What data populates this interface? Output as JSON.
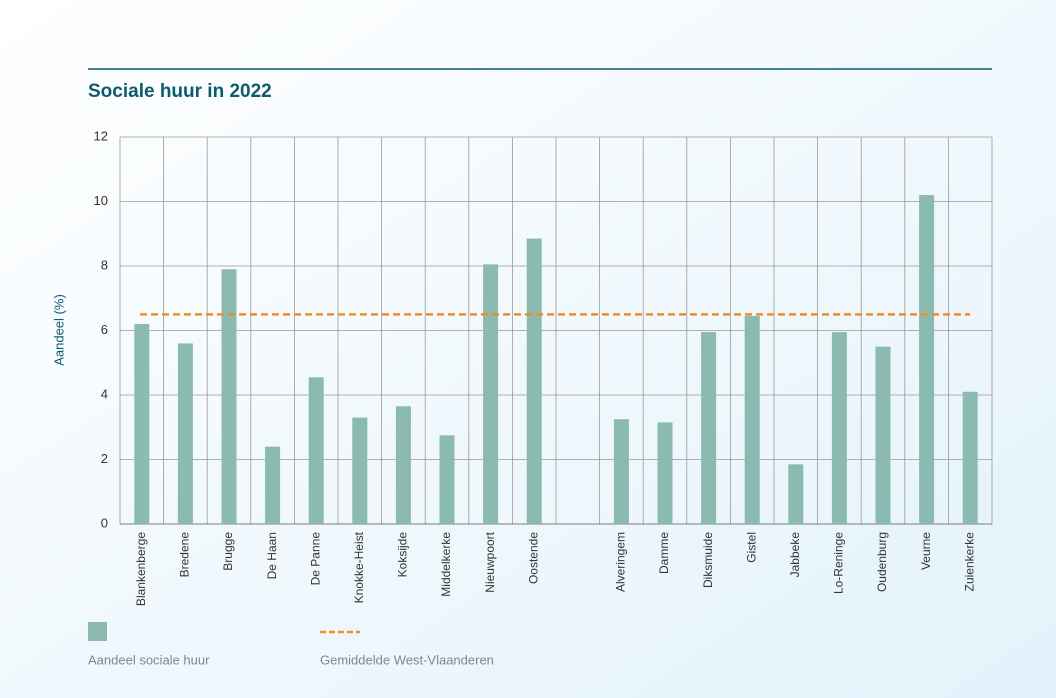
{
  "chart_data": {
    "type": "bar",
    "title": "Sociale huur in 2022",
    "y_label": "Aandeel (%)",
    "categories": [
      "Blankenberge",
      "Bredene",
      "Brugge",
      "De Haan",
      "De Panne",
      "Knokke-Heist",
      "Koksijde",
      "Middelkerke",
      "Nieuwpoort",
      "Oostende",
      null,
      "Alveringem",
      "Damme",
      "Diksmuide",
      "Gistel",
      "Jabbeke",
      "Lo-Reninge",
      "Oudenburg",
      "Veurne",
      "Zuienkerke"
    ],
    "series": [
      {
        "name": "Aandeel sociale huur",
        "color": "#8bbab0",
        "values": [
          6.2,
          5.6,
          7.9,
          2.4,
          4.55,
          3.3,
          3.65,
          2.75,
          8.05,
          8.85,
          null,
          3.25,
          3.15,
          5.95,
          6.45,
          1.85,
          5.95,
          5.5,
          10.2,
          4.1
        ]
      }
    ],
    "reference_line": {
      "name": "Gemiddelde West-Vlaanderen",
      "value": 6.5,
      "color": "#f28c28"
    },
    "ylim": [
      0,
      12
    ],
    "yticks": [
      0,
      2,
      4,
      6,
      8,
      10,
      12
    ],
    "grid": true
  }
}
